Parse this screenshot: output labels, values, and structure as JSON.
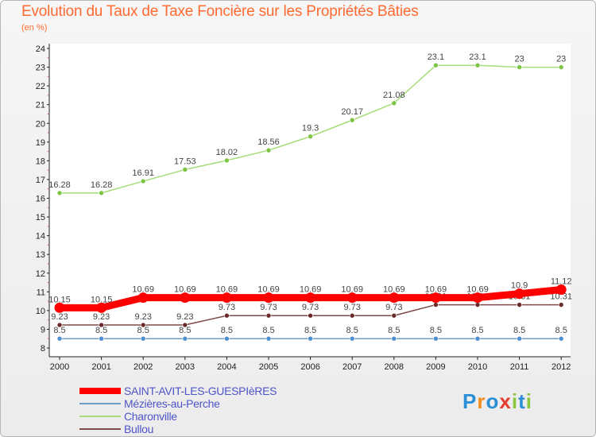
{
  "title": "Evolution du Taux de Taxe Foncière sur les Propriétés Bâties",
  "subtitle": "(en %)",
  "logo": {
    "letters": [
      "P",
      "r",
      "o",
      "x",
      "i",
      "t",
      "i"
    ],
    "colors": [
      "#2c8fd6",
      "#f28c1e",
      "#2c8fd6",
      "#e33d2e",
      "#8cc63f",
      "#2c8fd6",
      "#8cc63f"
    ]
  },
  "chart_data": {
    "type": "line",
    "title": "Evolution du Taux de Taxe Foncière sur les Propriétés Bâties",
    "xlabel": "",
    "ylabel": "(en %)",
    "categories": [
      "2000",
      "2001",
      "2002",
      "2003",
      "2004",
      "2005",
      "2006",
      "2007",
      "2008",
      "2009",
      "2010",
      "2011",
      "2012"
    ],
    "ylim": [
      8,
      24
    ],
    "yticks": [
      8,
      9,
      10,
      11,
      12,
      13,
      14,
      15,
      16,
      17,
      18,
      19,
      20,
      21,
      22,
      23,
      24
    ],
    "grid": false,
    "legend_position": "bottom-left",
    "series": [
      {
        "name": "Mézières-au-Perche",
        "color": "#6d9ec8",
        "marker": "#4e8fd0",
        "values": [
          8.5,
          8.5,
          8.5,
          8.5,
          8.5,
          8.5,
          8.5,
          8.5,
          8.5,
          8.5,
          8.5,
          8.5,
          8.5
        ],
        "labels": [
          "8.5",
          "8.5",
          "8.5",
          "8.5",
          "8.5",
          "8.5",
          "8.5",
          "8.5",
          "8.5",
          "8.5",
          "8.5",
          "8.5",
          "8.5"
        ]
      },
      {
        "name": "Bullou",
        "color": "#7e4a4a",
        "marker": "#6a2a2a",
        "values": [
          9.23,
          9.23,
          9.23,
          9.23,
          9.73,
          9.73,
          9.73,
          9.73,
          9.73,
          10.31,
          10.31,
          10.31,
          10.31
        ],
        "labels": [
          "9.23",
          "9.23",
          "9.23",
          "9.23",
          "9.73",
          "9.73",
          "9.73",
          "9.73",
          "9.73",
          "10.31",
          "10.31",
          "10.31",
          "10.31"
        ]
      },
      {
        "name": "Charonville",
        "color": "#a6dc7a",
        "marker": "#7cc441",
        "values": [
          16.28,
          16.28,
          16.91,
          17.53,
          18.02,
          18.56,
          19.3,
          20.17,
          21.08,
          23.1,
          23.1,
          23,
          23
        ],
        "labels": [
          "16.28",
          "16.28",
          "16.91",
          "17.53",
          "18.02",
          "18.56",
          "19.3",
          "20.17",
          "21.08",
          "23.1",
          "23.1",
          "23",
          "23"
        ]
      },
      {
        "name": "SAINT-AVIT-LES-GUESPIèRES",
        "color": "#ff0000",
        "marker": "#ff0000",
        "values": [
          10.15,
          10.15,
          10.69,
          10.69,
          10.69,
          10.69,
          10.69,
          10.69,
          10.69,
          10.69,
          10.69,
          10.9,
          11.12
        ],
        "labels": [
          "10.15",
          "10.15",
          "10.69",
          "10.69",
          "10.69",
          "10.69",
          "10.69",
          "10.69",
          "10.69",
          "10.69",
          "10.69",
          "10.9",
          "11.12"
        ]
      }
    ],
    "legend_order": [
      "SAINT-AVIT-LES-GUESPIèRES",
      "Mézières-au-Perche",
      "Charonville",
      "Bullou"
    ]
  }
}
